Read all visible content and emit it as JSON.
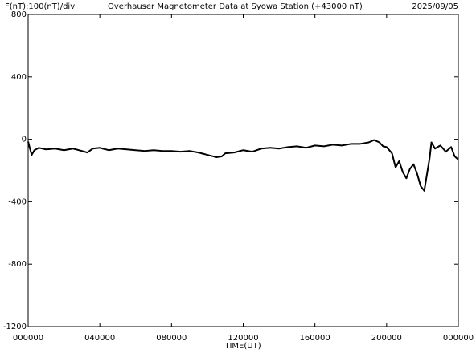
{
  "chart_data": {
    "type": "line",
    "title": "Overhauser Magnetometer Data at Syowa Station (+43000 nT)",
    "y_label": "F(nT):100(nT)/div",
    "date": "2025/09/05",
    "x_label": "TIME(UT)",
    "x": [
      0,
      0.1,
      0.2,
      0.35,
      0.6,
      1,
      1.5,
      2,
      2.5,
      3,
      3.3,
      3.6,
      4,
      4.5,
      5,
      5.5,
      6,
      6.5,
      7,
      7.5,
      8,
      8.5,
      9,
      9.5,
      10,
      10.5,
      10.8,
      11,
      11.5,
      12,
      12.5,
      13,
      13.5,
      14,
      14.5,
      15,
      15.5,
      16,
      16.5,
      17,
      17.5,
      18,
      18.5,
      19,
      19.3,
      19.6,
      19.8,
      20,
      20.3,
      20.5,
      20.7,
      20.9,
      21.1,
      21.3,
      21.5,
      21.7,
      21.9,
      22.1,
      22.2,
      22.4,
      22.5,
      22.7,
      23,
      23.3,
      23.6,
      23.8,
      24
    ],
    "series": [
      {
        "color": "#000000",
        "values": [
          -15,
          -60,
          -100,
          -70,
          -55,
          -65,
          -60,
          -70,
          -60,
          -75,
          -85,
          -60,
          -55,
          -70,
          -60,
          -65,
          -70,
          -75,
          -70,
          -75,
          -75,
          -80,
          -75,
          -85,
          -100,
          -115,
          -110,
          -90,
          -85,
          -70,
          -80,
          -60,
          -55,
          -60,
          -50,
          -45,
          -55,
          -40,
          -45,
          -35,
          -40,
          -30,
          -30,
          -20,
          -5,
          -20,
          -45,
          -50,
          -90,
          -180,
          -140,
          -210,
          -250,
          -190,
          -160,
          -220,
          -300,
          -330,
          -260,
          -120,
          -20,
          -60,
          -40,
          -80,
          -50,
          -110,
          -130
        ]
      }
    ],
    "xlim": [
      0,
      24
    ],
    "xticks": [
      {
        "value": 0,
        "label": "000000"
      },
      {
        "value": 4,
        "label": "040000"
      },
      {
        "value": 8,
        "label": "080000"
      },
      {
        "value": 12,
        "label": "120000"
      },
      {
        "value": 16,
        "label": "160000"
      },
      {
        "value": 20,
        "label": "200000"
      },
      {
        "value": 24,
        "label": "000000"
      }
    ],
    "ylim": [
      -1200,
      800
    ],
    "yticks": [
      800,
      400,
      0,
      -400,
      -800,
      -1200
    ]
  }
}
